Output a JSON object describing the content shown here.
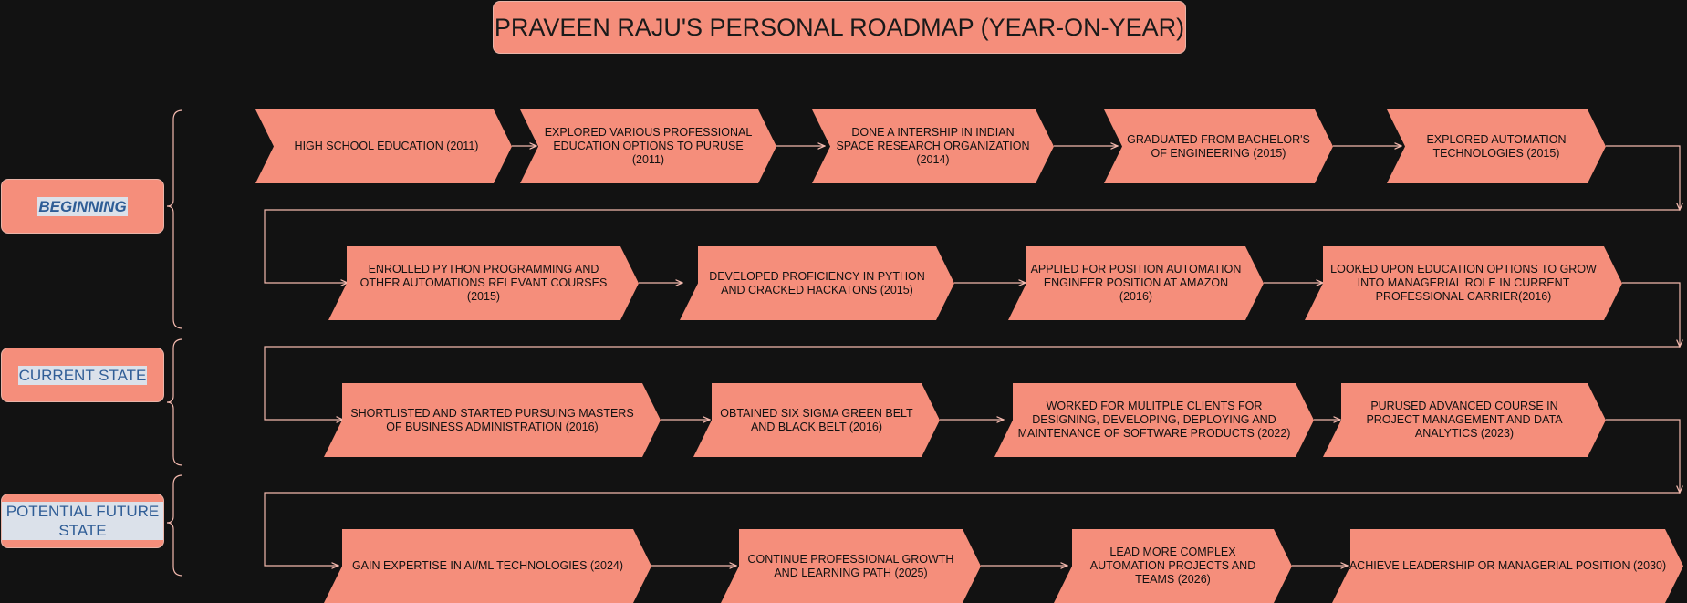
{
  "title": "PRAVEEN RAJU'S PERSONAL ROADMAP (YEAR-ON-YEAR)",
  "phases": [
    {
      "label": "BEGINNING"
    },
    {
      "label": "CURRENT STATE"
    },
    {
      "label": "POTENTIAL FUTURE STATE"
    }
  ],
  "rows": [
    [
      {
        "label": "HIGH SCHOOL EDUCATION (2011)"
      },
      {
        "label": "EXPLORED VARIOUS PROFESSIONAL EDUCATION OPTIONS TO PURUSE (2011)"
      },
      {
        "label": "DONE A INTERSHIP IN INDIAN SPACE RESEARCH ORGANIZATION (2014)"
      },
      {
        "label": "GRADUATED FROM BACHELOR'S OF ENGINEERING (2015)"
      },
      {
        "label": "EXPLORED AUTOMATION TECHNOLOGIES (2015)"
      }
    ],
    [
      {
        "label": "ENROLLED PYTHON PROGRAMMING AND OTHER AUTOMATIONS RELEVANT COURSES (2015)"
      },
      {
        "label": "DEVELOPED PROFICIENCY IN PYTHON AND CRACKED HACKATONS  (2015)"
      },
      {
        "label": "APPLIED FOR POSITION AUTOMATION ENGINEER POSITION AT AMAZON (2016)"
      },
      {
        "label": "LOOKED UPON EDUCATION OPTIONS TO GROW INTO MANAGERIAL ROLE IN CURRENT PROFESSIONAL CARRIER(2016)"
      }
    ],
    [
      {
        "label": "SHORTLISTED AND STARTED PURSUING MASTERS OF BUSINESS ADMINISTRATION (2016)"
      },
      {
        "label": "OBTAINED SIX SIGMA GREEN BELT AND BLACK BELT (2016)"
      },
      {
        "label": "WORKED FOR MULITPLE CLIENTS FOR DESIGNING, DEVELOPING, DEPLOYING AND MAINTENANCE OF SOFTWARE PRODUCTS (2022)"
      },
      {
        "label": "PURUSED ADVANCED COURSE IN PROJECT MANAGEMENT AND DATA ANALYTICS (2023)"
      }
    ],
    [
      {
        "label": "GAIN EXPERTISE IN AI/ML TECHNOLOGIES (2024)"
      },
      {
        "label": "CONTINUE PROFESSIONAL GROWTH AND LEARNING PATH (2025)"
      },
      {
        "label": "LEAD MORE COMPLEX AUTOMATION PROJECTS AND TEAMS (2026)"
      },
      {
        "label": "ACHIEVE LEADERSHIP OR MANAGERIAL POSITION (2030)"
      }
    ]
  ],
  "colors": {
    "background": "#121212",
    "shape": "#f58e7b",
    "connector": "#f2b8ad",
    "phase_text": "#2f5d96",
    "phase_highlight": "#dbe1ea"
  }
}
